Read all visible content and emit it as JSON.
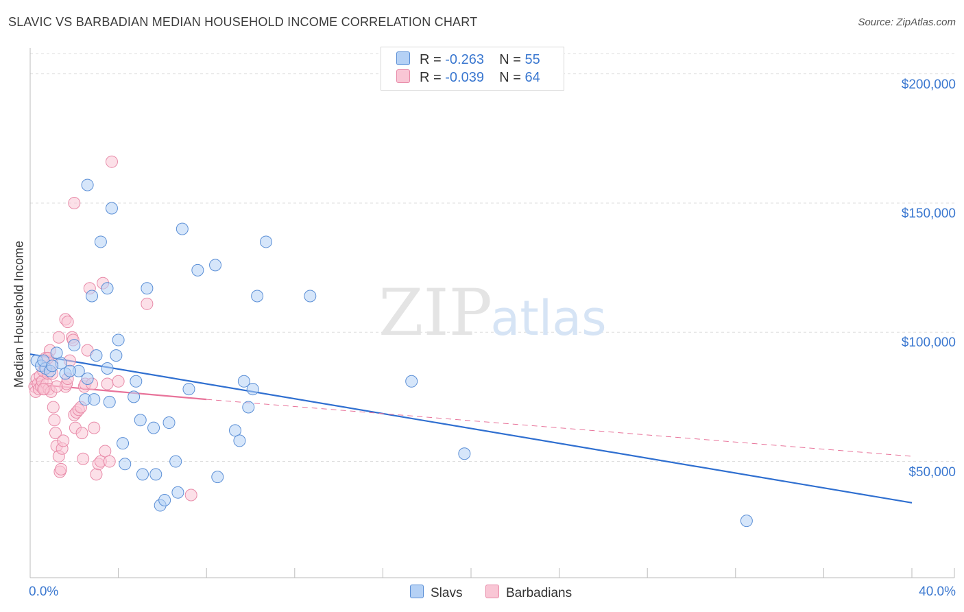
{
  "title": "SLAVIC VS BARBADIAN MEDIAN HOUSEHOLD INCOME CORRELATION CHART",
  "source": "Source: ZipAtlas.com",
  "watermark": {
    "zip": "ZIP",
    "atlas": "atlas"
  },
  "legend": {
    "slavs": {
      "r_label": "R =",
      "r_value": "-0.263",
      "n_label": "N =",
      "n_value": "55"
    },
    "barbadians": {
      "r_label": "R =",
      "r_value": "-0.039",
      "n_label": "N =",
      "n_value": "64"
    }
  },
  "bottom_legend": {
    "slavs": "Slavs",
    "barbadians": "Barbadians"
  },
  "colors": {
    "slavs_fill": "#b5d1f5",
    "slavs_stroke": "#5b8fd6",
    "slavs_line": "#2f6fd0",
    "barb_fill": "#f9c6d5",
    "barb_stroke": "#e88aa8",
    "barb_line": "#e8739a",
    "axis_text": "#3b78d0",
    "grid": "#dddddd"
  },
  "chart_data": {
    "type": "scatter",
    "title": "SLAVIC VS BARBADIAN MEDIAN HOUSEHOLD INCOME CORRELATION CHART",
    "xlabel": "",
    "ylabel": "Median Household Income",
    "xlim": [
      0,
      40
    ],
    "ylim": [
      5000,
      210000
    ],
    "x_tick_labels": [
      "0.0%",
      "40.0%"
    ],
    "y_ticks": [
      50000,
      100000,
      150000,
      200000
    ],
    "y_tick_labels": [
      "$50,000",
      "$100,000",
      "$150,000",
      "$200,000"
    ],
    "grid": true,
    "legend_position": "top-center",
    "series": [
      {
        "name": "Slavs",
        "R": -0.263,
        "N": 55,
        "trend": {
          "x": [
            0,
            40
          ],
          "y": [
            91500,
            34000
          ],
          "style": "solid"
        },
        "points": [
          [
            0.3,
            89000
          ],
          [
            0.5,
            87000
          ],
          [
            0.7,
            86000
          ],
          [
            0.9,
            85000
          ],
          [
            1.2,
            92000
          ],
          [
            1.4,
            88000
          ],
          [
            1.6,
            84000
          ],
          [
            2.0,
            95000
          ],
          [
            2.2,
            85000
          ],
          [
            2.5,
            74000
          ],
          [
            2.6,
            82000
          ],
          [
            2.8,
            114000
          ],
          [
            2.9,
            74000
          ],
          [
            3.2,
            135000
          ],
          [
            2.6,
            157000
          ],
          [
            3.5,
            117000
          ],
          [
            3.6,
            73000
          ],
          [
            3.9,
            91000
          ],
          [
            3.5,
            86000
          ],
          [
            3.7,
            148000
          ],
          [
            4.0,
            97000
          ],
          [
            4.2,
            57000
          ],
          [
            4.3,
            49000
          ],
          [
            4.8,
            81000
          ],
          [
            4.7,
            75000
          ],
          [
            5.0,
            66000
          ],
          [
            5.1,
            45000
          ],
          [
            5.3,
            117000
          ],
          [
            5.6,
            63000
          ],
          [
            5.7,
            45000
          ],
          [
            5.9,
            33000
          ],
          [
            6.1,
            35000
          ],
          [
            6.3,
            65000
          ],
          [
            6.6,
            50000
          ],
          [
            6.7,
            38000
          ],
          [
            6.9,
            140000
          ],
          [
            7.2,
            78000
          ],
          [
            7.6,
            124000
          ],
          [
            8.4,
            126000
          ],
          [
            8.5,
            44000
          ],
          [
            9.3,
            62000
          ],
          [
            9.5,
            58000
          ],
          [
            9.7,
            81000
          ],
          [
            10.1,
            78000
          ],
          [
            9.9,
            71000
          ],
          [
            10.3,
            114000
          ],
          [
            10.7,
            135000
          ],
          [
            12.7,
            114000
          ],
          [
            17.3,
            81000
          ],
          [
            19.7,
            53000
          ],
          [
            32.5,
            27000
          ],
          [
            0.6,
            89000
          ],
          [
            1.0,
            87000
          ],
          [
            3.0,
            91000
          ],
          [
            1.8,
            85000
          ]
        ]
      },
      {
        "name": "Barbadians",
        "R": -0.039,
        "N": 64,
        "trend": {
          "x": [
            0,
            8
          ],
          "y": [
            80000,
            74000
          ],
          "style": "solid"
        },
        "trend_extension": {
          "x": [
            8,
            40
          ],
          "y": [
            74000,
            52000
          ],
          "style": "dashed"
        },
        "points": [
          [
            0.2,
            79000
          ],
          [
            0.25,
            77000
          ],
          [
            0.3,
            82000
          ],
          [
            0.35,
            80000
          ],
          [
            0.4,
            78000
          ],
          [
            0.45,
            83000
          ],
          [
            0.5,
            79000
          ],
          [
            0.55,
            81000
          ],
          [
            0.6,
            85000
          ],
          [
            0.65,
            78000
          ],
          [
            0.7,
            90000
          ],
          [
            0.75,
            80000
          ],
          [
            0.8,
            84000
          ],
          [
            0.85,
            78000
          ],
          [
            0.9,
            93000
          ],
          [
            0.95,
            77000
          ],
          [
            1.0,
            88000
          ],
          [
            1.05,
            71000
          ],
          [
            1.1,
            66000
          ],
          [
            1.15,
            61000
          ],
          [
            1.2,
            56000
          ],
          [
            1.3,
            52000
          ],
          [
            1.35,
            46000
          ],
          [
            1.4,
            47000
          ],
          [
            1.45,
            55000
          ],
          [
            1.5,
            58000
          ],
          [
            1.6,
            79000
          ],
          [
            1.65,
            80000
          ],
          [
            1.7,
            82000
          ],
          [
            1.8,
            89000
          ],
          [
            1.9,
            98000
          ],
          [
            1.95,
            97000
          ],
          [
            2.0,
            68000
          ],
          [
            2.05,
            63000
          ],
          [
            2.1,
            69000
          ],
          [
            2.2,
            70000
          ],
          [
            2.3,
            71000
          ],
          [
            2.35,
            61000
          ],
          [
            2.4,
            51000
          ],
          [
            2.45,
            79000
          ],
          [
            2.5,
            80000
          ],
          [
            2.6,
            93000
          ],
          [
            2.7,
            117000
          ],
          [
            2.8,
            80000
          ],
          [
            2.9,
            63000
          ],
          [
            3.0,
            45000
          ],
          [
            3.1,
            49000
          ],
          [
            3.2,
            50000
          ],
          [
            3.3,
            119000
          ],
          [
            3.4,
            54000
          ],
          [
            3.5,
            80000
          ],
          [
            3.6,
            50000
          ],
          [
            3.7,
            166000
          ],
          [
            2.0,
            150000
          ],
          [
            1.6,
            105000
          ],
          [
            1.7,
            104000
          ],
          [
            1.3,
            98000
          ],
          [
            0.8,
            90000
          ],
          [
            5.3,
            111000
          ],
          [
            7.3,
            37000
          ],
          [
            1.0,
            84000
          ],
          [
            0.6,
            78000
          ],
          [
            1.2,
            79000
          ],
          [
            4.0,
            81000
          ]
        ]
      }
    ]
  }
}
